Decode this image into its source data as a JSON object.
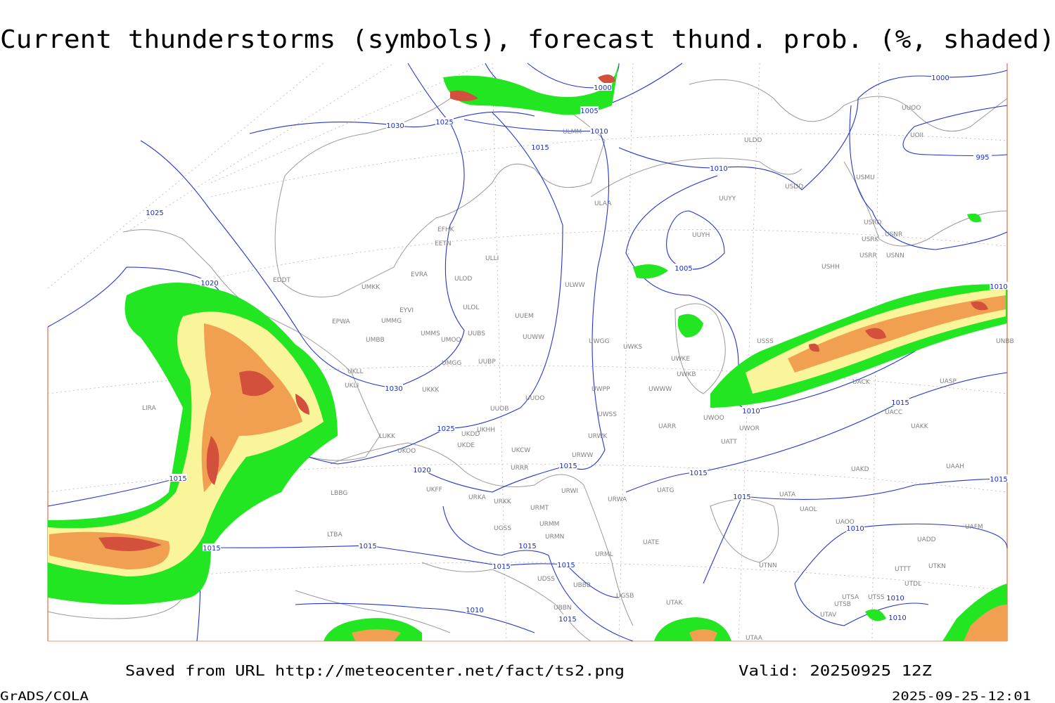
{
  "header": {
    "title": "Current thunderstorms (symbols), forecast thund. prob. (%, shaded)"
  },
  "isobar_labels": [
    "1030",
    "1025",
    "1000",
    "1005",
    "1010",
    "1015",
    "1010",
    "1000",
    "995",
    "1025",
    "1020",
    "1030",
    "1025",
    "1020",
    "1015",
    "1015",
    "1005",
    "1010",
    "1015",
    "1015",
    "1010",
    "1015",
    "1015",
    "1015",
    "1015",
    "1015",
    "1015",
    "1010",
    "1015",
    "1010",
    "1010",
    "1015",
    "1010"
  ],
  "stations": [
    "EFHK",
    "EETN",
    "ULLI",
    "EVRA",
    "ULOD",
    "EDDT",
    "UMKK",
    "ULOL",
    "EYVI",
    "UUEM",
    "EPWA",
    "UMMG",
    "ULWW",
    "UMMS",
    "UUBS",
    "UMOO",
    "UUWW",
    "UMBB",
    "UWGG",
    "UWKS",
    "UMGG",
    "UUBP",
    "UWKE",
    "UKLL",
    "UKLI",
    "UKKK",
    "UWPP",
    "UWWW",
    "UUOO",
    "LIRA",
    "UUOB",
    "UWSS",
    "UARR",
    "LUKK",
    "UKDD",
    "UKHH",
    "UKDE",
    "URWK",
    "UKOO",
    "URWW",
    "UKCW",
    "UATT",
    "URRR",
    "UKFF",
    "URWI",
    "UATG",
    "URKA",
    "URKK",
    "URWA",
    "UATA",
    "UAOL",
    "URMT",
    "URMM",
    "UATE",
    "URMN",
    "URML",
    "UTNN",
    "UGSS",
    "ULDD",
    "USDD",
    "USMU",
    "UUYY",
    "ULAA",
    "UUYH",
    "USRO",
    "USNR",
    "USRK",
    "USRR",
    "USNN",
    "USHH",
    "UUOO",
    "UOII",
    "ULMM",
    "USSS",
    "UACK",
    "UASP",
    "UACC",
    "UAKK",
    "UAKD",
    "UAAH",
    "UAOO",
    "UADD",
    "UAFM",
    "UTTT",
    "UTKN",
    "UTDL",
    "UTSA",
    "UTSB",
    "UTAV",
    "UTSS",
    "UTAK",
    "UTAA",
    "UBBB",
    "UBBN",
    "UGSB",
    "UDSS",
    "LTBA",
    "LBBG",
    "UWOO",
    "UWOR",
    "UNBB",
    "UWKB"
  ],
  "footer": {
    "saved": "Saved from URL http://meteocenter.net/fact/ts2.png",
    "valid": "Valid: 20250925 12Z",
    "software": "GrADS/COLA",
    "timestamp": "2025-09-25-12:01"
  }
}
